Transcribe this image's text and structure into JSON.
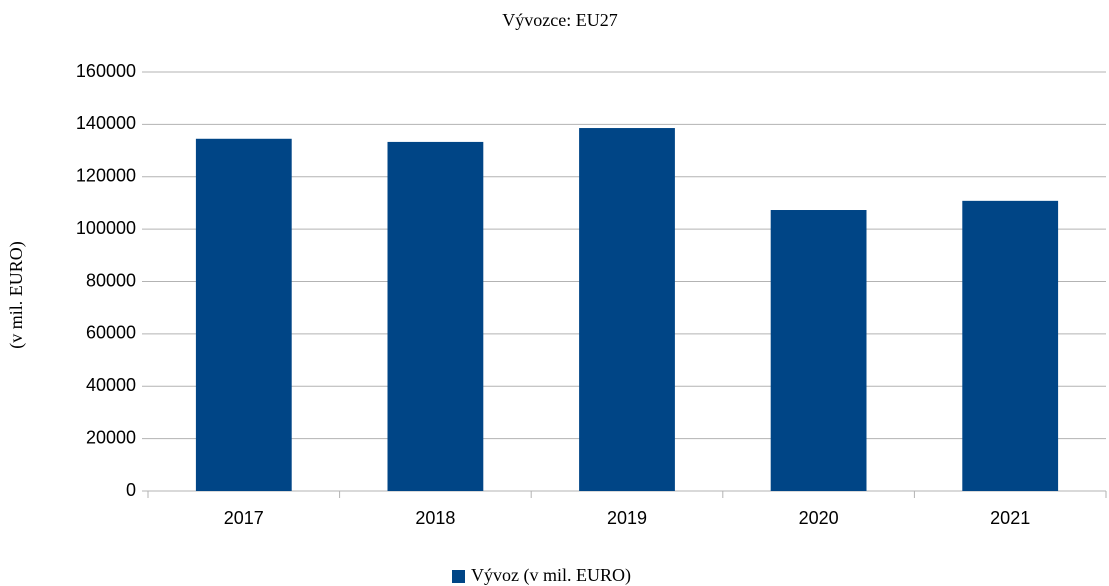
{
  "chart_data": {
    "type": "bar",
    "title": "Vývozce: EU27",
    "y_label": "(v mil. EURO)",
    "categories": [
      "2017",
      "2018",
      "2019",
      "2020",
      "2021"
    ],
    "series": [
      {
        "name": "Vývoz (v mil. EURO)",
        "color": "#004586",
        "values": [
          134500,
          133300,
          138600,
          107300,
          110800
        ]
      }
    ],
    "ylim": [
      0,
      160000
    ],
    "yticks": [
      0,
      20000,
      40000,
      60000,
      80000,
      100000,
      120000,
      140000,
      160000
    ],
    "grid": true,
    "legend": "bottom"
  }
}
